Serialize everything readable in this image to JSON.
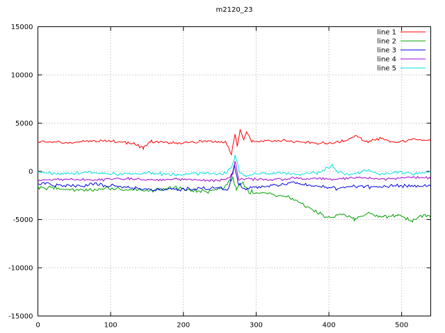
{
  "chart_data": {
    "type": "line",
    "title": "m2120_23",
    "xlabel": "",
    "ylabel": "",
    "xlim": [
      0,
      540
    ],
    "ylim": [
      -15000,
      15000
    ],
    "xticks": [
      0,
      100,
      200,
      300,
      400,
      500
    ],
    "yticks": [
      -15000,
      -10000,
      -5000,
      0,
      5000,
      10000,
      15000
    ],
    "grid": "dotted",
    "grid_color": "#a0a0a0",
    "border_color": "#000000",
    "background": "#ffffff",
    "legend_position": "top-right-inside",
    "series": [
      {
        "name": "line 1",
        "color": "#ff0000",
        "noise": 180,
        "seed": 11,
        "keypoints": [
          [
            0,
            3100
          ],
          [
            40,
            3000
          ],
          [
            90,
            3200
          ],
          [
            130,
            2900
          ],
          [
            145,
            2400
          ],
          [
            155,
            3100
          ],
          [
            200,
            2950
          ],
          [
            230,
            3150
          ],
          [
            258,
            3000
          ],
          [
            266,
            1800
          ],
          [
            271,
            3900
          ],
          [
            274,
            2500
          ],
          [
            278,
            4350
          ],
          [
            283,
            3300
          ],
          [
            287,
            4000
          ],
          [
            295,
            3100
          ],
          [
            330,
            3250
          ],
          [
            360,
            3000
          ],
          [
            395,
            2900
          ],
          [
            420,
            3100
          ],
          [
            438,
            3750
          ],
          [
            450,
            3000
          ],
          [
            470,
            3400
          ],
          [
            490,
            3000
          ],
          [
            515,
            3300
          ],
          [
            540,
            3150
          ]
        ]
      },
      {
        "name": "line 2",
        "color": "#00a000",
        "noise": 260,
        "seed": 23,
        "keypoints": [
          [
            0,
            -1650
          ],
          [
            50,
            -1900
          ],
          [
            100,
            -1750
          ],
          [
            150,
            -2000
          ],
          [
            190,
            -1700
          ],
          [
            230,
            -2100
          ],
          [
            255,
            -1800
          ],
          [
            268,
            -700
          ],
          [
            273,
            -1900
          ],
          [
            280,
            -1100
          ],
          [
            290,
            -2100
          ],
          [
            310,
            -2200
          ],
          [
            340,
            -2600
          ],
          [
            360,
            -3300
          ],
          [
            380,
            -4100
          ],
          [
            400,
            -4800
          ],
          [
            415,
            -4400
          ],
          [
            435,
            -4900
          ],
          [
            455,
            -4400
          ],
          [
            475,
            -4800
          ],
          [
            495,
            -4500
          ],
          [
            515,
            -5100
          ],
          [
            530,
            -4600
          ],
          [
            540,
            -4750
          ]
        ]
      },
      {
        "name": "line 3",
        "color": "#0000e0",
        "noise": 230,
        "seed": 37,
        "keypoints": [
          [
            0,
            -1250
          ],
          [
            40,
            -1500
          ],
          [
            80,
            -1350
          ],
          [
            120,
            -1700
          ],
          [
            160,
            -1900
          ],
          [
            200,
            -1850
          ],
          [
            240,
            -1750
          ],
          [
            262,
            -1900
          ],
          [
            270,
            700
          ],
          [
            275,
            -1200
          ],
          [
            282,
            -1800
          ],
          [
            300,
            -1600
          ],
          [
            330,
            -1400
          ],
          [
            355,
            -1200
          ],
          [
            380,
            -1500
          ],
          [
            410,
            -1800
          ],
          [
            440,
            -1500
          ],
          [
            470,
            -1650
          ],
          [
            500,
            -1450
          ],
          [
            520,
            -1600
          ],
          [
            540,
            -1400
          ]
        ]
      },
      {
        "name": "line 4",
        "color": "#a000d0",
        "noise": 170,
        "seed": 51,
        "keypoints": [
          [
            0,
            -950
          ],
          [
            40,
            -800
          ],
          [
            80,
            -900
          ],
          [
            120,
            -750
          ],
          [
            160,
            -900
          ],
          [
            200,
            -800
          ],
          [
            235,
            -950
          ],
          [
            260,
            -850
          ],
          [
            268,
            -200
          ],
          [
            271,
            1200
          ],
          [
            276,
            -900
          ],
          [
            290,
            -750
          ],
          [
            320,
            -850
          ],
          [
            360,
            -700
          ],
          [
            400,
            -800
          ],
          [
            440,
            -650
          ],
          [
            480,
            -800
          ],
          [
            510,
            -600
          ],
          [
            540,
            -700
          ]
        ]
      },
      {
        "name": "line 5",
        "color": "#00e0e0",
        "noise": 200,
        "seed": 73,
        "keypoints": [
          [
            0,
            -50
          ],
          [
            30,
            -250
          ],
          [
            70,
            -100
          ],
          [
            110,
            -300
          ],
          [
            150,
            -150
          ],
          [
            190,
            -350
          ],
          [
            230,
            -200
          ],
          [
            255,
            -300
          ],
          [
            266,
            400
          ],
          [
            271,
            1700
          ],
          [
            277,
            -100
          ],
          [
            285,
            -500
          ],
          [
            300,
            -250
          ],
          [
            330,
            -150
          ],
          [
            360,
            -300
          ],
          [
            385,
            -150
          ],
          [
            405,
            650
          ],
          [
            412,
            -100
          ],
          [
            430,
            -300
          ],
          [
            455,
            100
          ],
          [
            470,
            -250
          ],
          [
            495,
            -100
          ],
          [
            520,
            -250
          ],
          [
            540,
            -120
          ]
        ]
      }
    ]
  }
}
